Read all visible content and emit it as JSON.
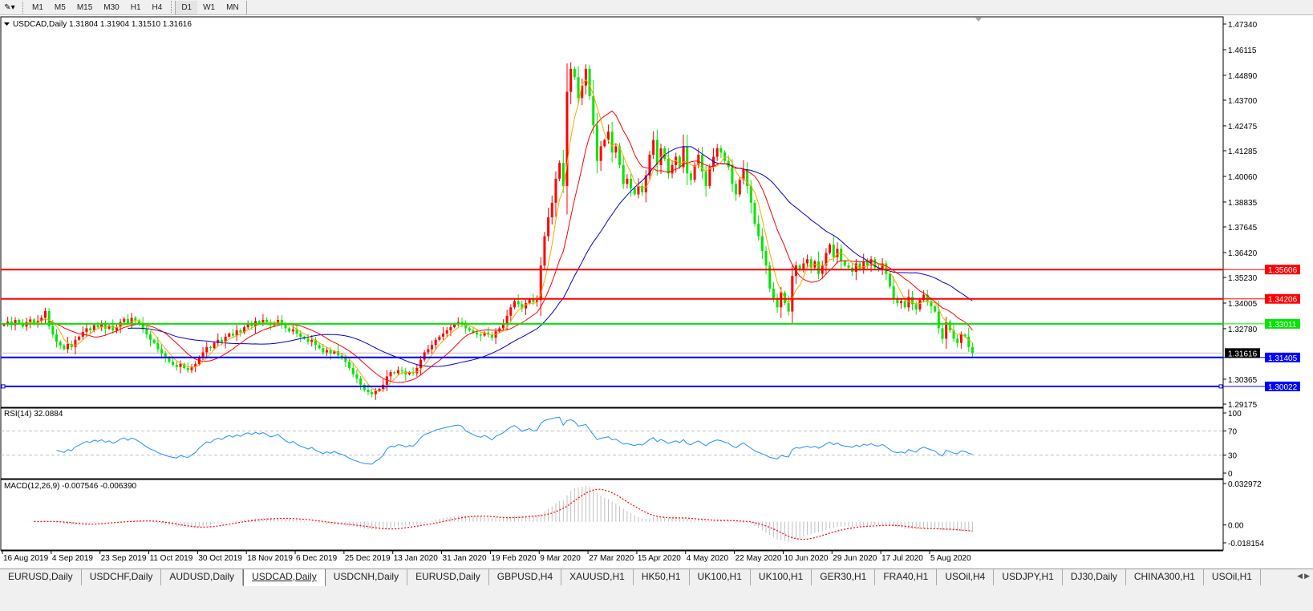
{
  "toolbar": {
    "timeframes": [
      "M1",
      "M5",
      "M15",
      "M30",
      "H1",
      "H4",
      "D1",
      "W1",
      "MN"
    ],
    "active_timeframe": "D1"
  },
  "header": {
    "symbol_label": "USDCAD,Daily",
    "ohlc": "1.31804 1.31904 1.31510 1.31616"
  },
  "rsi": {
    "label": "RSI(14) 32.0884",
    "ticks": [
      "100",
      "70",
      "30",
      "0"
    ]
  },
  "macd": {
    "label": "MACD(12,26,9) -0.007546 -0.006390",
    "ticks": [
      "0.032972",
      "0.00",
      "-0.018154"
    ]
  },
  "tabs": [
    "EURUSD,Daily",
    "USDCHF,Daily",
    "AUDUSD,Daily",
    "USDCAD,Daily",
    "USDCNH,Daily",
    "EURUSD,Daily",
    "GBPUSD,H4",
    "XAUUSD,H1",
    "HK50,H1",
    "UK100,H1",
    "UK100,H1",
    "GER30,H1",
    "FRA40,H1",
    "USOil,H4",
    "USDJPY,H1",
    "DJ30,Daily",
    "CHINA300,H1",
    "USOil,H1"
  ],
  "active_tab": 3,
  "colors": {
    "bull": "#ff0000",
    "bear": "#00e600",
    "ma_fast": "#ffa500",
    "ma_mid": "#ff0000",
    "ma_slow": "#0000cd",
    "rsi": "#1e90ff",
    "macd_hist": "#c0c0c0",
    "macd_signal": "#ff0000"
  },
  "chart_data": {
    "type": "candlestick",
    "symbol": "USDCAD",
    "timeframe": "Daily",
    "ylim": [
      1.29175,
      1.4734
    ],
    "yticks": [
      "1.47340",
      "1.46115",
      "1.44890",
      "1.43700",
      "1.42475",
      "1.41285",
      "1.40060",
      "1.38835",
      "1.37645",
      "1.36420",
      "1.35230",
      "1.34005",
      "1.32780",
      "1.30365",
      "1.29175"
    ],
    "xticks": [
      "16 Aug 2019",
      "4 Sep 2019",
      "23 Sep 2019",
      "11 Oct 2019",
      "30 Oct 2019",
      "18 Nov 2019",
      "6 Dec 2019",
      "25 Dec 2019",
      "13 Jan 2020",
      "31 Jan 2020",
      "19 Feb 2020",
      "9 Mar 2020",
      "27 Mar 2020",
      "15 Apr 2020",
      "4 May 2020",
      "22 May 2020",
      "10 Jun 2020",
      "29 Jun 2020",
      "17 Jul 2020",
      "5 Aug 2020"
    ],
    "current_price": {
      "label": "1.31616",
      "value": 1.31616
    },
    "levels": [
      {
        "label": "1.35606",
        "value": 1.35606,
        "color": "#ff0000"
      },
      {
        "label": "1.34206",
        "value": 1.34206,
        "color": "#ff0000"
      },
      {
        "label": "1.33011",
        "value": 1.33011,
        "color": "#00e600"
      },
      {
        "label": "1.31405",
        "value": 1.31405,
        "color": "#0000ff"
      },
      {
        "label": "1.30022",
        "value": 1.30022,
        "color": "#0000ff"
      }
    ],
    "closes": [
      1.33,
      1.3312,
      1.3295,
      1.332,
      1.3305,
      1.3288,
      1.331,
      1.3322,
      1.3298,
      1.3315,
      1.333,
      1.3362,
      1.329,
      1.325,
      1.3215,
      1.3198,
      1.318,
      1.3205,
      1.319,
      1.3225,
      1.324,
      1.3262,
      1.328,
      1.327,
      1.3295,
      1.3285,
      1.33,
      1.3278,
      1.3292,
      1.327,
      1.3285,
      1.331,
      1.3325,
      1.3305,
      1.333,
      1.3318,
      1.33,
      1.3275,
      1.325,
      1.3225,
      1.321,
      1.318,
      1.316,
      1.314,
      1.312,
      1.3105,
      1.3095,
      1.311,
      1.309,
      1.308,
      1.3095,
      1.311,
      1.314,
      1.3165,
      1.319,
      1.3185,
      1.321,
      1.3225,
      1.3215,
      1.324,
      1.3255,
      1.3245,
      1.327,
      1.326,
      1.3285,
      1.33,
      1.329,
      1.3315,
      1.3305,
      1.332,
      1.331,
      1.3295,
      1.3305,
      1.332,
      1.33,
      1.328,
      1.3265,
      1.3275,
      1.3255,
      1.324,
      1.323,
      1.3215,
      1.3225,
      1.32,
      1.3185,
      1.3165,
      1.3175,
      1.316,
      1.317,
      1.315,
      1.314,
      1.312,
      1.309,
      1.306,
      1.304,
      1.301,
      1.2985,
      1.2975,
      1.2965,
      1.298,
      1.299,
      1.301,
      1.305,
      1.307,
      1.3065,
      1.308,
      1.3075,
      1.306,
      1.307,
      1.3065,
      1.309,
      1.313,
      1.3165,
      1.318,
      1.32,
      1.3225,
      1.324,
      1.3255,
      1.327,
      1.3285,
      1.33,
      1.331,
      1.3305,
      1.328,
      1.327,
      1.326,
      1.325,
      1.3245,
      1.326,
      1.325,
      1.3235,
      1.3265,
      1.328,
      1.33,
      1.334,
      1.338,
      1.341,
      1.3395,
      1.3375,
      1.34,
      1.342,
      1.3405,
      1.3415,
      1.358,
      1.372,
      1.381,
      1.388,
      1.3995,
      1.407,
      1.396,
      1.441,
      1.452,
      1.448,
      1.438,
      1.444,
      1.452,
      1.439,
      1.425,
      1.408,
      1.415,
      1.418,
      1.422,
      1.412,
      1.415,
      1.406,
      1.397,
      1.3995,
      1.395,
      1.392,
      1.396,
      1.393,
      1.401,
      1.411,
      1.418,
      1.406,
      1.414,
      1.409,
      1.402,
      1.406,
      1.41,
      1.405,
      1.415,
      1.402,
      1.399,
      1.406,
      1.411,
      1.403,
      1.396,
      1.405,
      1.41,
      1.414,
      1.412,
      1.408,
      1.405,
      1.397,
      1.392,
      1.399,
      1.404,
      1.396,
      1.388,
      1.378,
      1.372,
      1.365,
      1.358,
      1.347,
      1.342,
      1.338,
      1.345,
      1.34,
      1.336,
      1.353,
      1.358,
      1.356,
      1.359,
      1.361,
      1.357,
      1.36,
      1.354,
      1.358,
      1.364,
      1.368,
      1.362,
      1.366,
      1.36,
      1.358,
      1.357,
      1.355,
      1.359,
      1.356,
      1.36,
      1.358,
      1.361,
      1.357,
      1.356,
      1.359,
      1.354,
      1.348,
      1.342,
      1.34,
      1.341,
      1.338,
      1.343,
      1.3395,
      1.337,
      1.3415,
      1.344,
      1.341,
      1.3385,
      1.336,
      1.328,
      1.323,
      1.331,
      1.327,
      1.323,
      1.321,
      1.325,
      1.324,
      1.319,
      1.3162
    ]
  }
}
